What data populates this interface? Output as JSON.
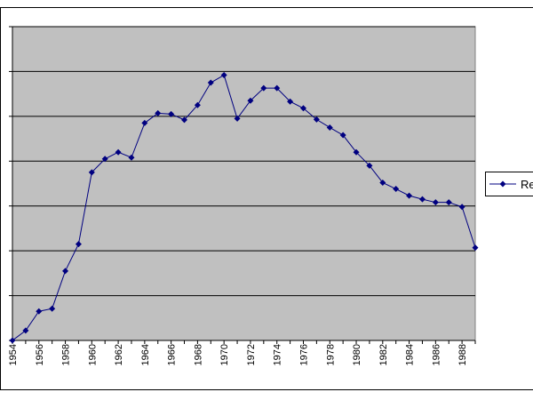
{
  "chart_data": {
    "type": "line",
    "title": "",
    "xlabel": "",
    "ylabel": "",
    "x": [
      1954,
      1955,
      1956,
      1957,
      1958,
      1959,
      1960,
      1961,
      1962,
      1963,
      1964,
      1965,
      1966,
      1967,
      1968,
      1969,
      1970,
      1971,
      1972,
      1973,
      1974,
      1975,
      1976,
      1977,
      1978,
      1979,
      1980,
      1981,
      1982,
      1983,
      1984,
      1985,
      1986,
      1987,
      1988,
      1989
    ],
    "x_tick_labels": [
      "1954",
      "1956",
      "1958",
      "1960",
      "1962",
      "1964",
      "1966",
      "1968",
      "1970",
      "1972",
      "1974",
      "1976",
      "1978",
      "1980",
      "1982",
      "1984",
      "1986",
      "1988"
    ],
    "ylim": [
      0,
      7
    ],
    "y_gridlines": 7,
    "series": [
      {
        "name": "Re",
        "values": [
          0.0,
          0.22,
          0.65,
          0.71,
          1.55,
          2.15,
          3.75,
          4.05,
          4.2,
          4.08,
          4.85,
          5.07,
          5.05,
          4.92,
          5.25,
          5.75,
          5.92,
          4.95,
          5.35,
          5.63,
          5.63,
          5.33,
          5.18,
          4.93,
          4.75,
          4.58,
          4.2,
          3.9,
          3.52,
          3.38,
          3.23,
          3.15,
          3.08,
          3.08,
          2.98,
          2.07
        ],
        "color": "#000080",
        "marker": "diamond"
      }
    ],
    "grid": true,
    "legend": "right",
    "plot_background": "#c0c0c0"
  }
}
